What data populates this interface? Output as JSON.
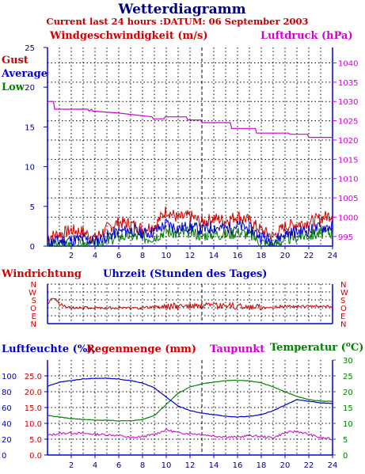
{
  "header": {
    "title": "Wetterdiagramm",
    "subtitle": "Current last 24 hours :DATUM: 06 September 2003"
  },
  "colors": {
    "red": "#d00000",
    "blue": "#0000d0",
    "green": "#008000",
    "magenta": "#d000d0",
    "navy": "#00007a"
  },
  "chart_data": [
    {
      "type": "line",
      "panel": "wind",
      "title": "Windgeschwindigkeit (m/s)",
      "right_title": "Luftdruck (hPa)",
      "legend": [
        "Gust",
        "Average",
        "Low"
      ],
      "x_ticks": [
        2,
        4,
        6,
        8,
        10,
        12,
        14,
        16,
        18,
        20,
        22,
        24
      ],
      "xlim": [
        0,
        24
      ],
      "ylim_left": [
        0,
        25
      ],
      "y_ticks_left": [
        0,
        5,
        10,
        15,
        20,
        25
      ],
      "ylim_right": [
        992.5,
        1044
      ],
      "y_ticks_right": [
        995,
        1000,
        1005,
        1010,
        1015,
        1020,
        1025,
        1030,
        1035,
        1040
      ],
      "series": [
        {
          "name": "Gust",
          "axis": "left",
          "x": [
            0,
            1,
            2,
            3,
            4,
            5,
            6,
            7,
            8,
            9,
            10,
            11,
            12,
            13,
            14,
            15,
            16,
            17,
            18,
            19,
            20,
            21,
            22,
            23,
            24
          ],
          "values": [
            1.2,
            1.5,
            2.0,
            1.8,
            1.0,
            2.2,
            3.0,
            2.8,
            2.2,
            2.5,
            4.5,
            3.5,
            3.8,
            3.0,
            3.5,
            3.2,
            3.8,
            3.2,
            2.0,
            1.2,
            2.5,
            2.8,
            3.0,
            3.5,
            4.0
          ]
        },
        {
          "name": "Average",
          "axis": "left",
          "x": [
            0,
            1,
            2,
            3,
            4,
            5,
            6,
            7,
            8,
            9,
            10,
            11,
            12,
            13,
            14,
            15,
            16,
            17,
            18,
            19,
            20,
            21,
            22,
            23,
            24
          ],
          "values": [
            0.5,
            0.6,
            0.8,
            0.9,
            0.6,
            1.2,
            1.8,
            2.0,
            1.6,
            1.8,
            2.8,
            2.2,
            2.5,
            2.0,
            2.4,
            2.2,
            2.6,
            2.2,
            1.2,
            0.6,
            1.5,
            1.8,
            2.0,
            2.3,
            2.5
          ]
        },
        {
          "name": "Low",
          "axis": "left",
          "x": [
            0,
            1,
            2,
            3,
            4,
            5,
            6,
            7,
            8,
            9,
            10,
            11,
            12,
            13,
            14,
            15,
            16,
            17,
            18,
            19,
            20,
            21,
            22,
            23,
            24
          ],
          "values": [
            0.0,
            0.1,
            0.2,
            0.2,
            0.1,
            0.6,
            1.2,
            1.4,
            1.0,
            1.2,
            2.0,
            1.5,
            1.8,
            1.4,
            1.6,
            1.5,
            1.8,
            1.5,
            0.5,
            0.1,
            0.9,
            1.2,
            1.4,
            1.6,
            1.8
          ]
        },
        {
          "name": "Luftdruck",
          "axis": "right",
          "x": [
            0,
            0.5,
            0.6,
            3.4,
            3.5,
            3.7,
            3.8,
            6,
            8.8,
            8.9,
            9.8,
            9.9,
            11.7,
            11.8,
            12.9,
            13,
            15.4,
            15.5,
            17.5,
            17.6,
            20.3,
            20.4,
            21.9,
            22,
            24
          ],
          "values": [
            1030,
            1030,
            1028,
            1028,
            1027.5,
            1028,
            1027.5,
            1027,
            1026,
            1025.5,
            1025.5,
            1026,
            1026,
            1025.2,
            1025.2,
            1024.5,
            1024.5,
            1023,
            1023,
            1021.8,
            1021.8,
            1021.5,
            1021.5,
            1020.7,
            1020.7
          ]
        }
      ]
    },
    {
      "type": "line",
      "panel": "direction",
      "title": "Windrichtung",
      "xlabel": "Uhrzeit (Stunden des Tages)",
      "categories": [
        "N",
        "W",
        "S",
        "O",
        "E",
        "N"
      ],
      "series": [
        {
          "name": "Windrichtung",
          "x": [
            0,
            0.3,
            0.6,
            1,
            2,
            4,
            6,
            8,
            10,
            12,
            14,
            16,
            18,
            20,
            22,
            24
          ],
          "values": [
            2.5,
            1.8,
            1.8,
            2.5,
            3.0,
            3.0,
            3.0,
            3.0,
            2.8,
            2.8,
            2.8,
            2.8,
            3.0,
            2.8,
            2.8,
            2.8
          ]
        }
      ]
    },
    {
      "type": "line",
      "panel": "humidity",
      "title_humidity": "Luftfeuchte (%),",
      "title_rain": "Regenmenge (mm)",
      "title_dew": "Taupunkt",
      "title_temp": "Temperatur (",
      "title_temp_unit": "C)",
      "degree_symbol": "o",
      "y_ticks_humidity": [
        0,
        20,
        40,
        60,
        80,
        100
      ],
      "y_ticks_rain": [
        "0.0",
        "5.0",
        "10.0",
        "15.0",
        "20.0",
        "25.0"
      ],
      "y_ticks_temp": [
        0,
        5,
        10,
        15,
        20,
        25,
        30
      ],
      "ylim_temp": [
        0,
        30
      ],
      "series": [
        {
          "name": "Luftfeuchte",
          "x": [
            0,
            1,
            2,
            3,
            4,
            5,
            6,
            7,
            8,
            9,
            10,
            11,
            12,
            13,
            14,
            15,
            16,
            17,
            18,
            19,
            20,
            21,
            22,
            23,
            24
          ],
          "values": [
            87,
            92,
            94,
            96,
            97,
            97,
            96,
            94,
            91,
            85,
            73,
            62,
            56,
            53,
            51,
            49,
            48,
            49,
            51,
            56,
            63,
            70,
            68,
            66,
            65
          ]
        },
        {
          "name": "Temperatur",
          "x": [
            0,
            1,
            2,
            3,
            4,
            5,
            6,
            7,
            8,
            9,
            10,
            11,
            12,
            13,
            14,
            15,
            16,
            17,
            18,
            19,
            20,
            21,
            22,
            23,
            24
          ],
          "values": [
            12.5,
            12,
            11.5,
            11.2,
            11.0,
            11.0,
            10.8,
            10.8,
            11.2,
            12.5,
            16,
            19.5,
            21.5,
            22.5,
            23.0,
            23.5,
            23.6,
            23.4,
            22.8,
            21.5,
            20,
            18.5,
            17.5,
            17.0,
            17.0
          ]
        },
        {
          "name": "Taupunkt",
          "x": [
            0,
            1,
            2,
            3,
            4,
            5,
            6,
            7,
            8,
            9,
            10,
            11,
            12,
            13,
            14,
            15,
            16,
            17,
            18,
            19,
            20,
            21,
            22,
            23,
            24
          ],
          "values": [
            6.2,
            6.8,
            7.0,
            6.8,
            6.6,
            6.4,
            6.2,
            5.5,
            5.8,
            6.5,
            8.0,
            7.0,
            6.8,
            6.5,
            6.0,
            5.8,
            5.6,
            6.2,
            5.8,
            5.5,
            7.0,
            7.5,
            6.5,
            5.5,
            5.0
          ]
        }
      ]
    }
  ]
}
